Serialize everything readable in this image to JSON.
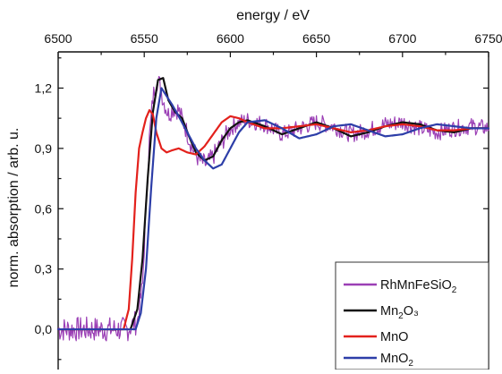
{
  "chart_data": {
    "type": "line",
    "xlabel": "energy / eV",
    "ylabel": "norm. absorption / arb. u.",
    "xlim": [
      6500,
      6750
    ],
    "ylim": [
      -0.2,
      1.38
    ],
    "x_ticks": [
      "6500",
      "6550",
      "6600",
      "6650",
      "6700",
      "6750"
    ],
    "y_ticks": [
      "0,0",
      "0,3",
      "0,6",
      "0,9",
      "1,2"
    ],
    "x_axis_position": "top",
    "grid": false,
    "legend_position": "bottom-right",
    "series": [
      {
        "name": "RhMnFeSiO2",
        "legend": {
          "base": "RhMnFeSiO",
          "sub": "2",
          "tail": ""
        },
        "color": "#9b3fb5",
        "noisy": true,
        "x": [
          6500,
          6540,
          6546,
          6549,
          6551,
          6553,
          6555,
          6557,
          6559,
          6561,
          6564,
          6567,
          6570,
          6574,
          6578,
          6582,
          6586,
          6590,
          6595,
          6600,
          6605,
          6610,
          6620,
          6630,
          6640,
          6650,
          6660,
          6670,
          6680,
          6690,
          6700,
          6710,
          6720,
          6730,
          6740,
          6750
        ],
        "y": [
          0.0,
          0.0,
          0.04,
          0.22,
          0.6,
          0.95,
          1.15,
          1.24,
          1.22,
          1.14,
          1.07,
          1.1,
          1.09,
          1.0,
          0.9,
          0.84,
          0.82,
          0.86,
          0.93,
          1.0,
          1.03,
          1.04,
          1.02,
          0.97,
          1.0,
          1.03,
          1.01,
          0.97,
          0.99,
          1.02,
          1.03,
          1.0,
          0.98,
          1.0,
          1.01,
          1.0
        ]
      },
      {
        "name": "Mn2O3",
        "legend": {
          "base": "Mn",
          "sub": "2",
          "tail": "O₃"
        },
        "color": "#111111",
        "noisy": false,
        "x": [
          6500,
          6542,
          6546,
          6549,
          6552,
          6555,
          6558,
          6561,
          6564,
          6568,
          6572,
          6576,
          6580,
          6585,
          6590,
          6595,
          6600,
          6605,
          6610,
          6620,
          6630,
          6640,
          6650,
          6660,
          6670,
          6680,
          6690,
          6700,
          6710,
          6720,
          6730,
          6740,
          6750
        ],
        "y": [
          0.0,
          0.0,
          0.1,
          0.35,
          0.75,
          1.08,
          1.24,
          1.25,
          1.14,
          1.08,
          1.05,
          0.96,
          0.88,
          0.84,
          0.86,
          0.94,
          1.0,
          1.03,
          1.04,
          1.01,
          0.97,
          1.0,
          1.03,
          1.0,
          0.96,
          0.98,
          1.01,
          1.03,
          1.02,
          0.99,
          0.98,
          1.0,
          1.0
        ]
      },
      {
        "name": "MnO",
        "legend": {
          "base": "MnO",
          "sub": "",
          "tail": ""
        },
        "color": "#e3211c",
        "noisy": false,
        "x": [
          6500,
          6538,
          6541,
          6543,
          6545,
          6547,
          6549,
          6551,
          6553,
          6555,
          6557,
          6560,
          6563,
          6566,
          6570,
          6575,
          6580,
          6585,
          6590,
          6595,
          6600,
          6605,
          6610,
          6620,
          6630,
          6640,
          6650,
          6660,
          6670,
          6680,
          6690,
          6700,
          6710,
          6720,
          6730,
          6740,
          6750
        ],
        "y": [
          0.0,
          0.0,
          0.1,
          0.35,
          0.68,
          0.9,
          0.98,
          1.05,
          1.09,
          1.07,
          0.98,
          0.9,
          0.88,
          0.89,
          0.9,
          0.88,
          0.87,
          0.91,
          0.97,
          1.03,
          1.06,
          1.05,
          1.03,
          1.0,
          1.0,
          1.01,
          1.02,
          1.0,
          0.98,
          0.99,
          1.01,
          1.02,
          1.01,
          0.99,
          0.99,
          1.0,
          1.0
        ]
      },
      {
        "name": "MnO2",
        "legend": {
          "base": "MnO",
          "sub": "2",
          "tail": ""
        },
        "color": "#2d3ea8",
        "noisy": false,
        "x": [
          6500,
          6545,
          6548,
          6551,
          6554,
          6557,
          6560,
          6563,
          6566,
          6570,
          6575,
          6580,
          6585,
          6590,
          6595,
          6600,
          6605,
          6610,
          6620,
          6630,
          6640,
          6650,
          6660,
          6670,
          6680,
          6690,
          6700,
          6710,
          6720,
          6730,
          6740,
          6750
        ],
        "y": [
          0.0,
          0.0,
          0.08,
          0.3,
          0.7,
          1.05,
          1.2,
          1.16,
          1.12,
          1.06,
          0.98,
          0.9,
          0.84,
          0.8,
          0.82,
          0.9,
          0.98,
          1.03,
          1.04,
          1.0,
          0.95,
          0.97,
          1.01,
          1.02,
          0.99,
          0.96,
          0.97,
          1.0,
          1.02,
          1.01,
          1.0,
          1.0
        ]
      }
    ]
  }
}
